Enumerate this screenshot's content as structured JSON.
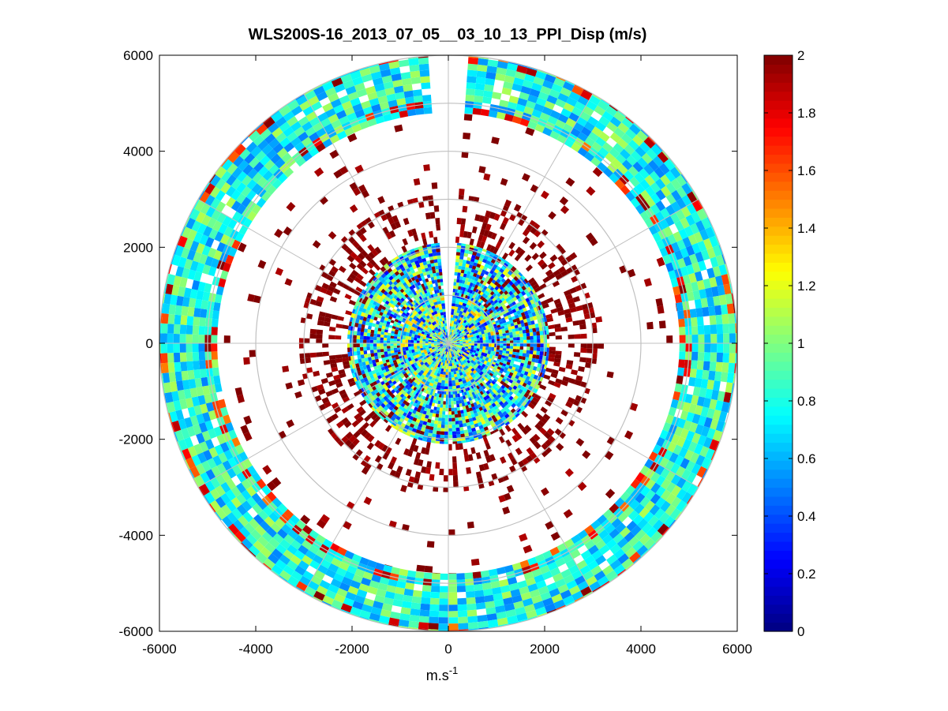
{
  "chart_data": {
    "type": "heatmap",
    "subtype": "polar-ppi",
    "title": "WLS200S-16_2013_07_05__03_10_13_PPI_Disp (m/s)",
    "xlabel_base": "m.s",
    "xlabel_sup": "-1",
    "ylabel": "",
    "xlim": [
      -6000,
      6000
    ],
    "ylim": [
      -6000,
      6000
    ],
    "xticks": [
      -6000,
      -4000,
      -2000,
      0,
      2000,
      4000,
      6000
    ],
    "yticks": [
      -6000,
      -4000,
      -2000,
      0,
      2000,
      4000,
      6000
    ],
    "xtick_labels": [
      "-6000",
      "-4000",
      "-2000",
      "0",
      "2000",
      "4000",
      "6000"
    ],
    "ytick_labels": [
      "-6000",
      "-4000",
      "-2000",
      "0",
      "2000",
      "4000",
      "6000"
    ],
    "range_rings_m": [
      1000,
      2000,
      3000,
      4000,
      5000,
      6000
    ],
    "spoke_angles_deg": [
      0,
      30,
      60,
      90,
      120,
      150,
      180,
      210,
      240,
      270,
      300,
      330
    ],
    "colorbar": {
      "min": 0,
      "max": 2,
      "ticks": [
        0,
        0.2,
        0.4,
        0.6,
        0.8,
        1,
        1.2,
        1.4,
        1.6,
        1.8,
        2
      ],
      "tick_labels": [
        "0",
        "0.2",
        "0.4",
        "0.6",
        "0.8",
        "1",
        "1.2",
        "1.4",
        "1.6",
        "1.8",
        "2"
      ],
      "colormap": "jet"
    },
    "missing_sector_deg": [
      -4,
      4
    ],
    "field_regions": [
      {
        "name": "near-center",
        "r_min": 0,
        "r_max": 1000,
        "typical_value": 0.8,
        "spread": 0.6,
        "coverage": 1.0
      },
      {
        "name": "inner-ring",
        "r_min": 1000,
        "r_max": 2100,
        "typical_value": 0.75,
        "spread": 0.5,
        "coverage": 0.95
      },
      {
        "name": "sparse-high",
        "r_min": 2100,
        "r_max": 3100,
        "typical_value": 2.0,
        "spread": 0.1,
        "coverage": 0.35
      },
      {
        "name": "clear-gap",
        "r_min": 3100,
        "r_max": 4800,
        "typical_value": 2.0,
        "spread": 0.1,
        "coverage": 0.05
      },
      {
        "name": "outer-band",
        "r_min": 4800,
        "r_max": 6000,
        "typical_value": 0.8,
        "spread": 0.3,
        "coverage": 0.95
      }
    ]
  }
}
